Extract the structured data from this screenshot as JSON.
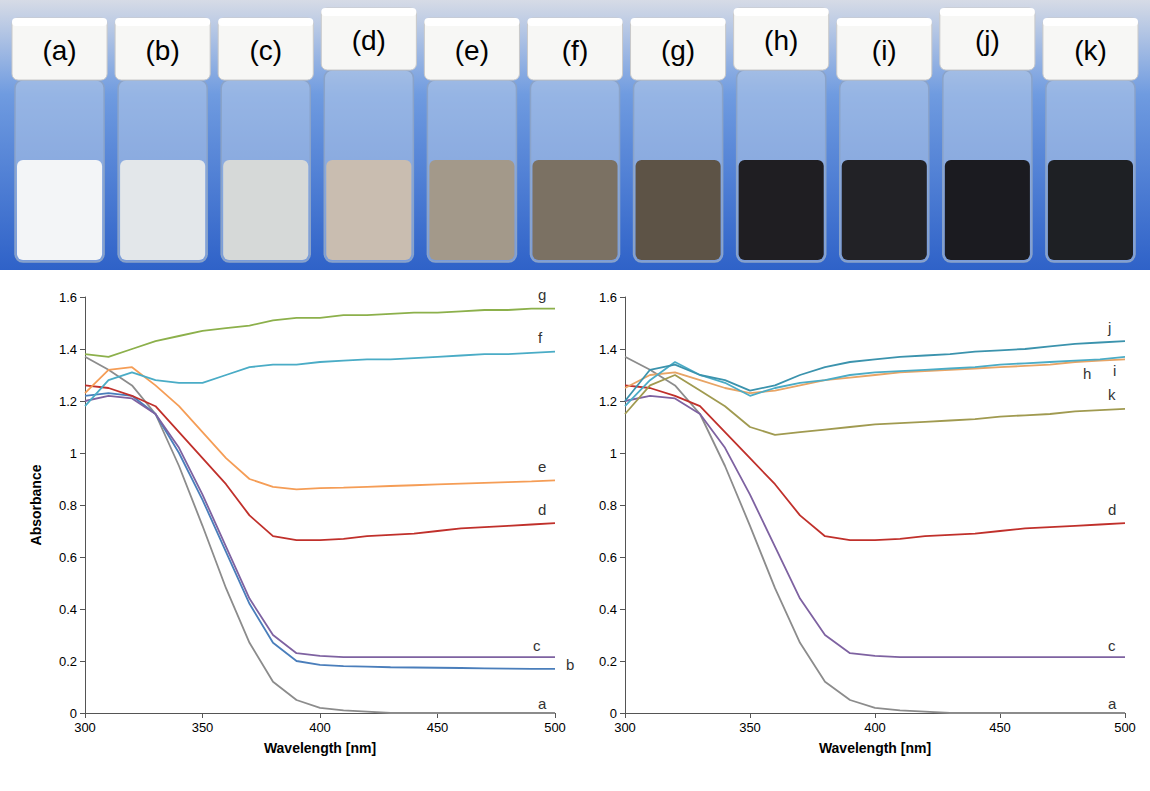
{
  "photo": {
    "vials": [
      {
        "label": "(a)",
        "color": "#f3f5f7"
      },
      {
        "label": "(b)",
        "color": "#e3e7ea"
      },
      {
        "label": "(c)",
        "color": "#d6d9d8"
      },
      {
        "label": "(d)",
        "color": "#c9bdb0"
      },
      {
        "label": "(e)",
        "color": "#a3998a"
      },
      {
        "label": "(f)",
        "color": "#7b7163"
      },
      {
        "label": "(g)",
        "color": "#5d5346"
      },
      {
        "label": "(h)",
        "color": "#1f1e22"
      },
      {
        "label": "(i)",
        "color": "#222226"
      },
      {
        "label": "(j)",
        "color": "#1b1b20"
      },
      {
        "label": "(k)",
        "color": "#1e2024"
      }
    ]
  },
  "chart_data": [
    {
      "type": "line",
      "xlabel": "Wavelength [nm]",
      "ylabel": "Absorbance",
      "x": [
        300,
        310,
        320,
        330,
        340,
        350,
        360,
        370,
        380,
        390,
        400,
        410,
        420,
        430,
        440,
        450,
        460,
        470,
        480,
        490,
        500
      ],
      "xlim": [
        300,
        500
      ],
      "xticks": [
        300,
        350,
        400,
        450,
        500
      ],
      "ylim": [
        0,
        1.6
      ],
      "yticks": [
        0,
        0.2,
        0.4,
        0.6,
        0.8,
        1,
        1.2,
        1.4,
        1.6
      ],
      "grid": false,
      "marker": "none",
      "series": [
        {
          "name": "a",
          "color": "#8c8c8c",
          "values": [
            1.37,
            1.32,
            1.26,
            1.15,
            0.95,
            0.72,
            0.48,
            0.27,
            0.12,
            0.05,
            0.02,
            0.01,
            0.005,
            0,
            0,
            0,
            0,
            0,
            0,
            0,
            0
          ]
        },
        {
          "name": "b",
          "color": "#4a7ebb",
          "values": [
            1.22,
            1.23,
            1.22,
            1.15,
            1.0,
            0.82,
            0.62,
            0.42,
            0.27,
            0.2,
            0.185,
            0.18,
            0.178,
            0.176,
            0.175,
            0.174,
            0.173,
            0.172,
            0.171,
            0.17,
            0.17
          ]
        },
        {
          "name": "c",
          "color": "#7e62a1",
          "values": [
            1.2,
            1.22,
            1.21,
            1.15,
            1.02,
            0.84,
            0.64,
            0.44,
            0.3,
            0.23,
            0.22,
            0.215,
            0.215,
            0.215,
            0.215,
            0.215,
            0.215,
            0.215,
            0.215,
            0.215,
            0.215
          ]
        },
        {
          "name": "d",
          "color": "#c0302b",
          "values": [
            1.26,
            1.25,
            1.22,
            1.18,
            1.08,
            0.98,
            0.88,
            0.76,
            0.68,
            0.665,
            0.665,
            0.67,
            0.68,
            0.685,
            0.69,
            0.7,
            0.71,
            0.715,
            0.72,
            0.725,
            0.73
          ]
        },
        {
          "name": "e",
          "color": "#f59d56",
          "values": [
            1.23,
            1.32,
            1.33,
            1.26,
            1.18,
            1.08,
            0.98,
            0.9,
            0.87,
            0.86,
            0.865,
            0.867,
            0.87,
            0.873,
            0.876,
            0.879,
            0.882,
            0.885,
            0.888,
            0.891,
            0.895
          ]
        },
        {
          "name": "f",
          "color": "#4aacc6",
          "values": [
            1.18,
            1.28,
            1.31,
            1.28,
            1.27,
            1.27,
            1.3,
            1.33,
            1.34,
            1.34,
            1.35,
            1.355,
            1.36,
            1.36,
            1.365,
            1.37,
            1.375,
            1.38,
            1.38,
            1.385,
            1.39
          ]
        },
        {
          "name": "g",
          "color": "#8cb04b",
          "values": [
            1.38,
            1.37,
            1.4,
            1.43,
            1.45,
            1.47,
            1.48,
            1.49,
            1.51,
            1.52,
            1.52,
            1.53,
            1.53,
            1.535,
            1.54,
            1.54,
            1.545,
            1.55,
            1.55,
            1.555,
            1.555
          ]
        }
      ]
    },
    {
      "type": "line",
      "xlabel": "Wavelength [nm]",
      "x": [
        300,
        310,
        320,
        330,
        340,
        350,
        360,
        370,
        380,
        390,
        400,
        410,
        420,
        430,
        440,
        450,
        460,
        470,
        480,
        490,
        500
      ],
      "xlim": [
        300,
        500
      ],
      "xticks": [
        300,
        350,
        400,
        450,
        500
      ],
      "ylim": [
        0,
        1.6
      ],
      "yticks": [
        0,
        0.2,
        0.4,
        0.6,
        0.8,
        1,
        1.2,
        1.4,
        1.6
      ],
      "grid": false,
      "marker": "none",
      "series": [
        {
          "name": "a",
          "color": "#8c8c8c",
          "values": [
            1.37,
            1.32,
            1.26,
            1.15,
            0.95,
            0.72,
            0.48,
            0.27,
            0.12,
            0.05,
            0.02,
            0.01,
            0.005,
            0,
            0,
            0,
            0,
            0,
            0,
            0,
            0
          ]
        },
        {
          "name": "c",
          "color": "#7e62a1",
          "values": [
            1.2,
            1.22,
            1.21,
            1.15,
            1.02,
            0.84,
            0.64,
            0.44,
            0.3,
            0.23,
            0.22,
            0.215,
            0.215,
            0.215,
            0.215,
            0.215,
            0.215,
            0.215,
            0.215,
            0.215,
            0.215
          ]
        },
        {
          "name": "d",
          "color": "#c0302b",
          "values": [
            1.26,
            1.25,
            1.22,
            1.18,
            1.08,
            0.98,
            0.88,
            0.76,
            0.68,
            0.665,
            0.665,
            0.67,
            0.68,
            0.685,
            0.69,
            0.7,
            0.71,
            0.715,
            0.72,
            0.725,
            0.73
          ]
        },
        {
          "name": "h",
          "color": "#e8a465",
          "values": [
            1.25,
            1.3,
            1.31,
            1.28,
            1.25,
            1.23,
            1.24,
            1.26,
            1.28,
            1.29,
            1.3,
            1.31,
            1.315,
            1.32,
            1.325,
            1.33,
            1.335,
            1.34,
            1.35,
            1.355,
            1.36
          ]
        },
        {
          "name": "i",
          "color": "#4bacc6",
          "values": [
            1.18,
            1.28,
            1.35,
            1.3,
            1.27,
            1.22,
            1.25,
            1.27,
            1.28,
            1.3,
            1.31,
            1.315,
            1.32,
            1.325,
            1.33,
            1.34,
            1.345,
            1.35,
            1.355,
            1.36,
            1.37
          ]
        },
        {
          "name": "j",
          "color": "#3b93ad",
          "values": [
            1.2,
            1.32,
            1.34,
            1.3,
            1.28,
            1.24,
            1.26,
            1.3,
            1.33,
            1.35,
            1.36,
            1.37,
            1.375,
            1.38,
            1.39,
            1.395,
            1.4,
            1.41,
            1.42,
            1.425,
            1.43
          ]
        },
        {
          "name": "k",
          "color": "#a09a50",
          "values": [
            1.15,
            1.26,
            1.3,
            1.24,
            1.18,
            1.1,
            1.07,
            1.08,
            1.09,
            1.1,
            1.11,
            1.115,
            1.12,
            1.125,
            1.13,
            1.14,
            1.145,
            1.15,
            1.16,
            1.165,
            1.17
          ]
        }
      ]
    }
  ]
}
